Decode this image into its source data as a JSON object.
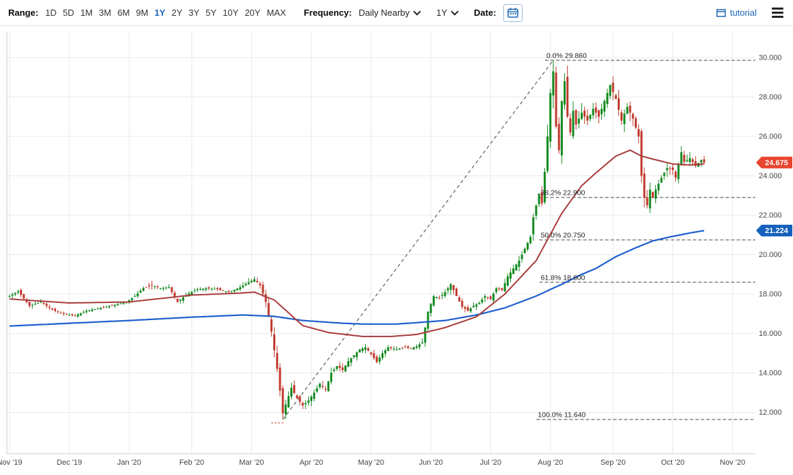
{
  "toolbar": {
    "range_label": "Range:",
    "range_options": [
      "1D",
      "5D",
      "1M",
      "3M",
      "6M",
      "9M",
      "1Y",
      "2Y",
      "3Y",
      "5Y",
      "10Y",
      "20Y",
      "MAX"
    ],
    "range_selected": "1Y",
    "frequency_label": "Frequency:",
    "frequency_value": "Daily Nearby",
    "period_value": "1Y",
    "date_label": "Date:",
    "tutorial_label": "tutorial"
  },
  "colors": {
    "accent_blue": "#1b66b5",
    "candle_up": "#128a1f",
    "candle_down": "#c0392b",
    "red_ma": "#a83b3b",
    "blue_ma": "#1d5ecd",
    "badge_red": "#e8442f",
    "badge_blue": "#1560bd",
    "grid": "#e8e8e8",
    "axis_line": "#cccccc",
    "dashed": "#444444",
    "axis_text": "#444444",
    "anchor_dash": "#d04a3a"
  },
  "chart_data": {
    "type": "candlestick",
    "title": "",
    "legend": [
      "price candles",
      "red moving average",
      "blue moving average",
      "Fibonacci retracement levels",
      "dashed trendline"
    ],
    "x_domain_days": [
      0,
      262
    ],
    "y_domain": [
      9.9,
      31.32
    ],
    "days_total": 245,
    "seed": 11,
    "x_ticks": [
      {
        "day": 0,
        "label": "Nov '19"
      },
      {
        "day": 21,
        "label": "Dec '19"
      },
      {
        "day": 42,
        "label": "Jan '20"
      },
      {
        "day": 64,
        "label": "Feb '20"
      },
      {
        "day": 85,
        "label": "Mar '20"
      },
      {
        "day": 106,
        "label": "Apr '20"
      },
      {
        "day": 127,
        "label": "May '20"
      },
      {
        "day": 148,
        "label": "Jun '20"
      },
      {
        "day": 169,
        "label": "Jul '20"
      },
      {
        "day": 190,
        "label": "Aug '20"
      },
      {
        "day": 212,
        "label": "Sep '20"
      },
      {
        "day": 233,
        "label": "Oct '20"
      },
      {
        "day": 254,
        "label": "Nov '20"
      }
    ],
    "y_ticks": [
      {
        "value": 12,
        "label": "12.000"
      },
      {
        "value": 14,
        "label": "14.000"
      },
      {
        "value": 16,
        "label": "16.000"
      },
      {
        "value": 18,
        "label": "18.000"
      },
      {
        "value": 20,
        "label": "20.000"
      },
      {
        "value": 22,
        "label": "22.000"
      },
      {
        "value": 24,
        "label": "24.000"
      },
      {
        "value": 26,
        "label": "26.000"
      },
      {
        "value": 28,
        "label": "28.000"
      },
      {
        "value": 30,
        "label": "30.000"
      }
    ],
    "close_keypoints": [
      [
        0,
        17.9,
        0.2
      ],
      [
        3,
        18.15,
        0.25
      ],
      [
        7,
        17.4,
        0.25
      ],
      [
        11,
        17.6,
        0.2
      ],
      [
        15,
        17.2,
        0.2
      ],
      [
        19,
        17.0,
        0.15
      ],
      [
        23,
        16.9,
        0.15
      ],
      [
        27,
        17.15,
        0.15
      ],
      [
        32,
        17.3,
        0.12
      ],
      [
        37,
        17.45,
        0.12
      ],
      [
        41,
        17.6,
        0.15
      ],
      [
        44,
        17.9,
        0.2
      ],
      [
        47,
        18.3,
        0.25
      ],
      [
        50,
        18.45,
        0.3
      ],
      [
        53,
        18.3,
        0.2
      ],
      [
        56,
        18.35,
        0.2
      ],
      [
        59,
        17.6,
        0.25
      ],
      [
        62,
        17.95,
        0.2
      ],
      [
        65,
        18.2,
        0.2
      ],
      [
        69,
        18.3,
        0.15
      ],
      [
        73,
        18.25,
        0.15
      ],
      [
        77,
        18.1,
        0.18
      ],
      [
        81,
        18.35,
        0.2
      ],
      [
        84,
        18.6,
        0.3
      ],
      [
        86,
        18.75,
        0.3
      ],
      [
        88,
        18.45,
        0.3
      ],
      [
        90,
        17.6,
        0.4
      ],
      [
        92,
        16.1,
        0.5
      ],
      [
        94,
        14.2,
        0.55
      ],
      [
        95,
        13.1,
        0.5
      ],
      [
        96,
        11.95,
        0.4
      ],
      [
        97,
        12.4,
        0.45
      ],
      [
        99,
        13.25,
        0.45
      ],
      [
        101,
        12.7,
        0.4
      ],
      [
        103,
        12.35,
        0.35
      ],
      [
        105,
        12.6,
        0.35
      ],
      [
        107,
        13.0,
        0.4
      ],
      [
        109,
        13.45,
        0.4
      ],
      [
        111,
        13.15,
        0.35
      ],
      [
        113,
        14.0,
        0.4
      ],
      [
        115,
        14.35,
        0.35
      ],
      [
        117,
        14.15,
        0.3
      ],
      [
        119,
        14.6,
        0.3
      ],
      [
        121,
        14.9,
        0.3
      ],
      [
        123,
        15.2,
        0.28
      ],
      [
        125,
        15.3,
        0.25
      ],
      [
        127,
        14.95,
        0.3
      ],
      [
        129,
        14.55,
        0.3
      ],
      [
        131,
        15.0,
        0.28
      ],
      [
        133,
        15.3,
        0.25
      ],
      [
        136,
        15.2,
        0.2
      ],
      [
        139,
        15.3,
        0.18
      ],
      [
        141,
        15.25,
        0.18
      ],
      [
        143,
        15.35,
        0.2
      ],
      [
        145,
        15.55,
        0.3
      ],
      [
        146,
        16.3,
        0.4
      ],
      [
        147,
        17.1,
        0.4
      ],
      [
        149,
        17.9,
        0.35
      ],
      [
        151,
        17.8,
        0.3
      ],
      [
        153,
        18.1,
        0.3
      ],
      [
        155,
        18.5,
        0.35
      ],
      [
        157,
        17.9,
        0.3
      ],
      [
        159,
        17.35,
        0.25
      ],
      [
        161,
        17.15,
        0.25
      ],
      [
        163,
        17.4,
        0.25
      ],
      [
        165,
        17.55,
        0.25
      ],
      [
        167,
        17.9,
        0.3
      ],
      [
        169,
        17.75,
        0.25
      ],
      [
        171,
        18.3,
        0.3
      ],
      [
        173,
        18.2,
        0.3
      ],
      [
        175,
        18.9,
        0.35
      ],
      [
        177,
        19.3,
        0.35
      ],
      [
        179,
        19.7,
        0.35
      ],
      [
        181,
        20.3,
        0.4
      ],
      [
        183,
        20.9,
        0.45
      ],
      [
        184,
        21.9,
        0.5
      ],
      [
        185,
        22.5,
        0.5
      ],
      [
        186,
        23.1,
        0.5
      ],
      [
        187,
        22.6,
        0.5
      ],
      [
        188,
        24.2,
        0.6
      ],
      [
        189,
        26.0,
        0.8
      ],
      [
        190,
        28.2,
        0.9
      ],
      [
        191,
        29.3,
        0.9
      ],
      [
        192,
        26.5,
        1.1
      ],
      [
        193,
        25.3,
        1.0
      ],
      [
        194,
        27.8,
        1.0
      ],
      [
        195,
        28.8,
        0.9
      ],
      [
        196,
        27.0,
        0.9
      ],
      [
        197,
        26.2,
        0.8
      ],
      [
        198,
        27.3,
        0.8
      ],
      [
        199,
        26.6,
        0.7
      ],
      [
        201,
        27.2,
        0.7
      ],
      [
        203,
        26.8,
        0.6
      ],
      [
        205,
        27.4,
        0.6
      ],
      [
        207,
        27.0,
        0.6
      ],
      [
        209,
        27.8,
        0.65
      ],
      [
        211,
        28.6,
        0.7
      ],
      [
        213,
        27.9,
        0.6
      ],
      [
        215,
        26.8,
        0.6
      ],
      [
        217,
        27.5,
        0.6
      ],
      [
        219,
        26.9,
        0.55
      ],
      [
        221,
        26.0,
        0.6
      ],
      [
        222,
        24.0,
        0.8
      ],
      [
        223,
        22.9,
        0.7
      ],
      [
        224,
        22.5,
        0.6
      ],
      [
        225,
        23.3,
        0.5
      ],
      [
        226,
        22.9,
        0.45
      ],
      [
        227,
        23.3,
        0.45
      ],
      [
        229,
        23.9,
        0.45
      ],
      [
        231,
        24.4,
        0.45
      ],
      [
        233,
        24.3,
        0.4
      ],
      [
        234,
        23.9,
        0.4
      ],
      [
        236,
        25.2,
        0.45
      ],
      [
        237,
        24.7,
        0.4
      ],
      [
        239,
        24.9,
        0.4
      ],
      [
        241,
        24.5,
        0.35
      ],
      [
        243,
        24.8,
        0.35
      ],
      [
        244,
        24.675,
        0.3
      ]
    ],
    "red_ma": [
      [
        0,
        17.75
      ],
      [
        21,
        17.55
      ],
      [
        42,
        17.6
      ],
      [
        64,
        17.95
      ],
      [
        81,
        18.05
      ],
      [
        86,
        18.1
      ],
      [
        93,
        17.7
      ],
      [
        103,
        16.4
      ],
      [
        112,
        16.05
      ],
      [
        124,
        15.85
      ],
      [
        134,
        15.85
      ],
      [
        143,
        15.95
      ],
      [
        153,
        16.3
      ],
      [
        164,
        16.85
      ],
      [
        174,
        18.0
      ],
      [
        185,
        19.7
      ],
      [
        194,
        22.1
      ],
      [
        201,
        23.5
      ],
      [
        206,
        24.15
      ],
      [
        213,
        25.0
      ],
      [
        218,
        25.3
      ],
      [
        222,
        25.0
      ],
      [
        226,
        24.85
      ],
      [
        233,
        24.6
      ],
      [
        239,
        24.55
      ],
      [
        244,
        24.6
      ]
    ],
    "blue_ma": [
      [
        0,
        16.38
      ],
      [
        21,
        16.52
      ],
      [
        42,
        16.66
      ],
      [
        64,
        16.83
      ],
      [
        82,
        16.94
      ],
      [
        93,
        16.87
      ],
      [
        103,
        16.66
      ],
      [
        117,
        16.52
      ],
      [
        124,
        16.48
      ],
      [
        136,
        16.48
      ],
      [
        143,
        16.55
      ],
      [
        153,
        16.66
      ],
      [
        164,
        16.94
      ],
      [
        174,
        17.3
      ],
      [
        185,
        17.9
      ],
      [
        194,
        18.5
      ],
      [
        201,
        19.0
      ],
      [
        206,
        19.3
      ],
      [
        213,
        19.9
      ],
      [
        220,
        20.35
      ],
      [
        226,
        20.7
      ],
      [
        233,
        20.93
      ],
      [
        239,
        21.1
      ],
      [
        244,
        21.22
      ]
    ],
    "fib_levels": [
      {
        "label": "0.0% 29.860",
        "value": 29.86,
        "label_day": 191
      },
      {
        "label": "38.2% 22.900",
        "value": 22.9,
        "label_day": 189
      },
      {
        "label": "50.0% 20.750",
        "value": 20.75,
        "label_day": 189
      },
      {
        "label": "61.8% 18.600",
        "value": 18.6,
        "label_day": 189
      },
      {
        "label": "100.0% 11.640",
        "value": 11.64,
        "label_day": 188
      }
    ],
    "trendline": {
      "from": [
        96,
        11.64
      ],
      "to": [
        191,
        29.86
      ]
    },
    "last_price_badge": {
      "text": "24.675",
      "value": 24.675
    },
    "ma_badge": {
      "text": "21.224",
      "value": 21.224
    }
  }
}
